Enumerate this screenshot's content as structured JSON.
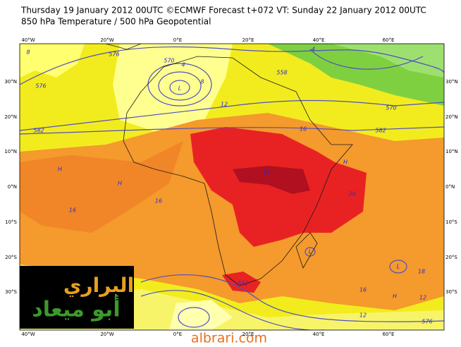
{
  "header": {
    "title": "Thursday 19 January 2012 00UTC ©ECMWF Forecast t+072 VT: Sunday 22 January 2012 00UTC",
    "subtitle": "850 hPa Temperature / 500 hPa Geopotential"
  },
  "axes": {
    "lon_labels": [
      "40°W",
      "20°W",
      "0°E",
      "20°E",
      "40°E",
      "60°E"
    ],
    "lat_labels": [
      "30°N",
      "20°N",
      "10°N",
      "0°N",
      "10°S",
      "20°S",
      "30°S"
    ]
  },
  "contour_labels": [
    "576",
    "570",
    "4",
    "8",
    "8",
    "L",
    "576",
    "582",
    "12",
    "16",
    "24",
    "16",
    "16",
    "20",
    "18",
    "12",
    "12",
    "576",
    "570",
    "582",
    "558",
    "-4",
    "16",
    "552",
    "L",
    "L",
    "H",
    "H",
    "H",
    "H"
  ],
  "logo": {
    "line1": "البراري",
    "line2": "أبو ميعاد"
  },
  "footer": {
    "url": "albrari.com"
  }
}
